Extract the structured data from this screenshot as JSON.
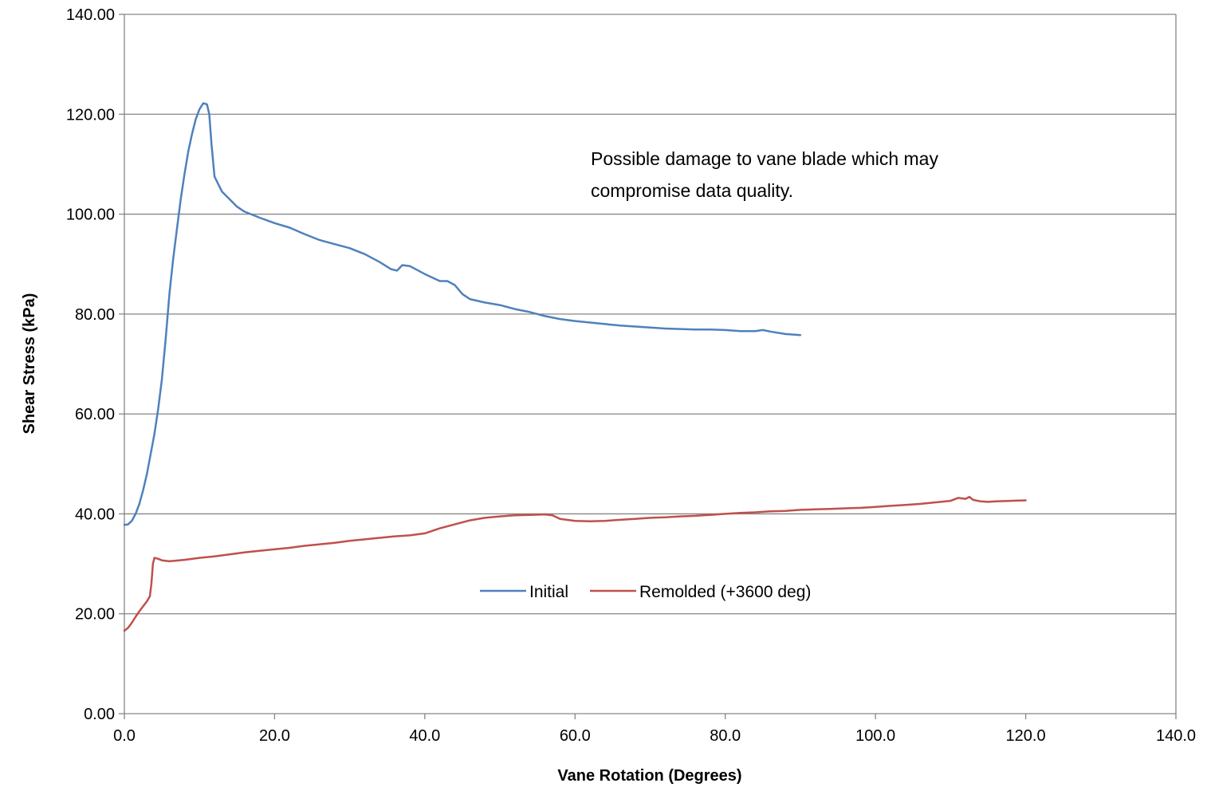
{
  "chart_data": {
    "type": "line",
    "title": "",
    "xlabel": "Vane Rotation (Degrees)",
    "ylabel": "Shear Stress (kPa)",
    "xlim": [
      0,
      140
    ],
    "ylim": [
      0,
      140
    ],
    "x_ticks": [
      "0.0",
      "20.0",
      "40.0",
      "60.0",
      "80.0",
      "100.0",
      "120.0",
      "140.0"
    ],
    "y_ticks": [
      "0.00",
      "20.00",
      "40.00",
      "60.00",
      "80.00",
      "100.00",
      "120.00",
      "140.00"
    ],
    "grid": "horizontal",
    "legend_position": "lower-center",
    "annotations": [
      "Possible damage to vane blade which may",
      "compromise data quality."
    ],
    "series": [
      {
        "name": "Initial",
        "color": "#4F81BD",
        "points": [
          [
            0,
            37.8
          ],
          [
            0.5,
            37.9
          ],
          [
            1,
            38.6
          ],
          [
            1.5,
            40
          ],
          [
            2,
            42
          ],
          [
            2.5,
            44.8
          ],
          [
            3,
            48
          ],
          [
            3.5,
            52
          ],
          [
            4,
            56
          ],
          [
            4.5,
            61
          ],
          [
            5,
            67
          ],
          [
            5.5,
            75
          ],
          [
            6,
            84
          ],
          [
            6.5,
            91
          ],
          [
            7,
            97
          ],
          [
            7.5,
            103
          ],
          [
            8,
            108
          ],
          [
            8.5,
            112.5
          ],
          [
            9,
            116
          ],
          [
            9.5,
            119
          ],
          [
            10,
            121
          ],
          [
            10.5,
            122.2
          ],
          [
            11,
            122
          ],
          [
            11.3,
            120
          ],
          [
            11.6,
            114
          ],
          [
            12,
            107.5
          ],
          [
            13,
            104.5
          ],
          [
            14,
            103
          ],
          [
            15,
            101.5
          ],
          [
            16,
            100.5
          ],
          [
            18,
            99.3
          ],
          [
            20,
            98.2
          ],
          [
            22,
            97.3
          ],
          [
            24,
            96
          ],
          [
            26,
            94.8
          ],
          [
            28,
            94
          ],
          [
            30,
            93.2
          ],
          [
            32,
            92
          ],
          [
            34,
            90.4
          ],
          [
            35.5,
            89
          ],
          [
            36.3,
            88.7
          ],
          [
            37,
            89.8
          ],
          [
            38,
            89.6
          ],
          [
            40,
            88
          ],
          [
            42,
            86.6
          ],
          [
            43,
            86.6
          ],
          [
            44,
            85.8
          ],
          [
            45,
            84
          ],
          [
            46,
            83
          ],
          [
            48,
            82.3
          ],
          [
            50,
            81.8
          ],
          [
            52,
            81
          ],
          [
            54,
            80.4
          ],
          [
            56,
            79.6
          ],
          [
            58,
            79
          ],
          [
            60,
            78.6
          ],
          [
            62,
            78.3
          ],
          [
            64,
            78
          ],
          [
            66,
            77.7
          ],
          [
            68,
            77.5
          ],
          [
            70,
            77.3
          ],
          [
            72,
            77.1
          ],
          [
            74,
            77
          ],
          [
            76,
            76.9
          ],
          [
            78,
            76.9
          ],
          [
            80,
            76.8
          ],
          [
            82,
            76.6
          ],
          [
            84,
            76.6
          ],
          [
            85,
            76.8
          ],
          [
            86,
            76.5
          ],
          [
            88,
            76
          ],
          [
            90,
            75.8
          ]
        ]
      },
      {
        "name": "Remolded (+3600 deg)",
        "color": "#C0504D",
        "points": [
          [
            0,
            16.6
          ],
          [
            0.5,
            17.2
          ],
          [
            1,
            18.2
          ],
          [
            1.5,
            19.4
          ],
          [
            2,
            20.5
          ],
          [
            2.5,
            21.5
          ],
          [
            3,
            22.5
          ],
          [
            3.4,
            23.5
          ],
          [
            3.6,
            26
          ],
          [
            3.8,
            30
          ],
          [
            4,
            31.2
          ],
          [
            4.5,
            31
          ],
          [
            5,
            30.7
          ],
          [
            6,
            30.5
          ],
          [
            8,
            30.8
          ],
          [
            10,
            31.2
          ],
          [
            12,
            31.5
          ],
          [
            14,
            31.9
          ],
          [
            16,
            32.3
          ],
          [
            18,
            32.6
          ],
          [
            20,
            32.9
          ],
          [
            22,
            33.2
          ],
          [
            24,
            33.6
          ],
          [
            26,
            33.9
          ],
          [
            28,
            34.2
          ],
          [
            30,
            34.6
          ],
          [
            32,
            34.9
          ],
          [
            34,
            35.2
          ],
          [
            36,
            35.5
          ],
          [
            38,
            35.7
          ],
          [
            40,
            36.1
          ],
          [
            42,
            37.1
          ],
          [
            44,
            37.9
          ],
          [
            46,
            38.7
          ],
          [
            48,
            39.2
          ],
          [
            50,
            39.5
          ],
          [
            52,
            39.7
          ],
          [
            54,
            39.8
          ],
          [
            56,
            39.9
          ],
          [
            57,
            39.7
          ],
          [
            58,
            39
          ],
          [
            60,
            38.6
          ],
          [
            62,
            38.5
          ],
          [
            64,
            38.6
          ],
          [
            66,
            38.8
          ],
          [
            68,
            39
          ],
          [
            70,
            39.2
          ],
          [
            72,
            39.3
          ],
          [
            74,
            39.5
          ],
          [
            76,
            39.6
          ],
          [
            78,
            39.8
          ],
          [
            80,
            40
          ],
          [
            82,
            40.2
          ],
          [
            84,
            40.3
          ],
          [
            86,
            40.5
          ],
          [
            88,
            40.6
          ],
          [
            90,
            40.8
          ],
          [
            92,
            40.9
          ],
          [
            94,
            41
          ],
          [
            96,
            41.1
          ],
          [
            98,
            41.2
          ],
          [
            100,
            41.4
          ],
          [
            102,
            41.6
          ],
          [
            104,
            41.8
          ],
          [
            106,
            42
          ],
          [
            108,
            42.3
          ],
          [
            110,
            42.6
          ],
          [
            111,
            43.2
          ],
          [
            112,
            43
          ],
          [
            112.5,
            43.4
          ],
          [
            113,
            42.8
          ],
          [
            114,
            42.5
          ],
          [
            115,
            42.4
          ],
          [
            116,
            42.5
          ],
          [
            118,
            42.6
          ],
          [
            120,
            42.7
          ]
        ]
      }
    ]
  }
}
